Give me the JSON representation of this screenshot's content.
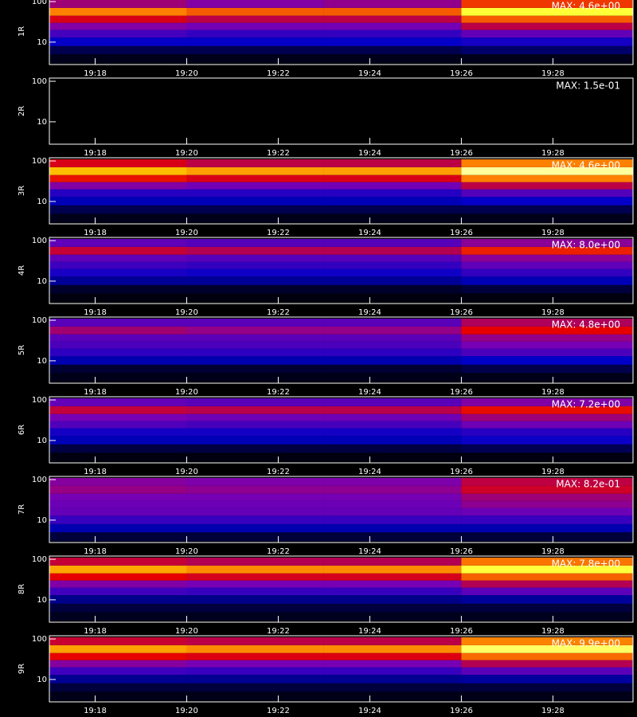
{
  "chart_data": [
    {
      "type": "heatmap",
      "ylabel": "1R",
      "annotation": "MAX: 4.6e+00",
      "zlim": [
        0,
        4.6
      ],
      "log_y": true,
      "colormap": [
        "#000000",
        "#0000c8",
        "#7800b4",
        "#e60000",
        "#ff8c00",
        "#ffff00",
        "#ffffff"
      ],
      "x": [
        1157,
        1160,
        1163,
        1166,
        1169.75
      ],
      "y": [
        3,
        5,
        8,
        13,
        20,
        30,
        45,
        70,
        110
      ],
      "z": [
        [
          0.1,
          0.1,
          0.1,
          0.1
        ],
        [
          0.3,
          0.3,
          0.3,
          0.4
        ],
        [
          0.8,
          0.8,
          0.8,
          0.9
        ],
        [
          1.2,
          1.1,
          1.1,
          1.4
        ],
        [
          1.6,
          1.5,
          1.5,
          2.0
        ],
        [
          2.2,
          2.0,
          2.0,
          2.8
        ],
        [
          3.0,
          2.8,
          2.8,
          4.0
        ],
        [
          1.8,
          1.6,
          1.7,
          2.6
        ]
      ],
      "xlim": [
        1157,
        1169.75
      ],
      "xticks": [
        {
          "value": 1158,
          "label": "19:18"
        },
        {
          "value": 1160,
          "label": "19:20"
        },
        {
          "value": 1162,
          "label": "19:22"
        },
        {
          "value": 1164,
          "label": "19:24"
        },
        {
          "value": 1166,
          "label": "19:26"
        },
        {
          "value": 1168,
          "label": "19:28"
        }
      ],
      "ylim": [
        2.8,
        120
      ],
      "yticks": [
        10,
        100
      ]
    },
    {
      "type": "heatmap",
      "ylabel": "2R",
      "annotation": "MAX: 1.5e-01",
      "zlim": [
        0,
        0.15
      ],
      "log_y": true,
      "colormap": [
        "#000000",
        "#0000c8",
        "#7800b4",
        "#e60000",
        "#ff8c00",
        "#ffff00",
        "#ffffff"
      ],
      "x": [
        1157,
        1160,
        1163,
        1166,
        1169.75
      ],
      "y": [
        3,
        5,
        8,
        13,
        20,
        30,
        45,
        70,
        110
      ],
      "z": [
        [
          0,
          0,
          0,
          0
        ],
        [
          0,
          0,
          0,
          0
        ],
        [
          0,
          0,
          0,
          0
        ],
        [
          0,
          0,
          0,
          0
        ],
        [
          0,
          0,
          0,
          0
        ],
        [
          0,
          0,
          0,
          0
        ],
        [
          0,
          0,
          0,
          0
        ],
        [
          0,
          0,
          0,
          0
        ]
      ],
      "xlim": [
        1157,
        1169.75
      ],
      "xticks": [
        {
          "value": 1158,
          "label": "19:18"
        },
        {
          "value": 1160,
          "label": "19:20"
        },
        {
          "value": 1162,
          "label": "19:22"
        },
        {
          "value": 1164,
          "label": "19:24"
        },
        {
          "value": 1166,
          "label": "19:26"
        },
        {
          "value": 1168,
          "label": "19:28"
        }
      ],
      "ylim": [
        2.8,
        120
      ],
      "yticks": [
        10,
        100
      ]
    },
    {
      "type": "heatmap",
      "ylabel": "3R",
      "annotation": "MAX: 4.6e+00",
      "zlim": [
        0,
        4.6
      ],
      "log_y": true,
      "colormap": [
        "#000000",
        "#0000c8",
        "#7800b4",
        "#e60000",
        "#ff8c00",
        "#ffff00",
        "#ffffff"
      ],
      "x": [
        1157,
        1160,
        1163,
        1166,
        1169.75
      ],
      "y": [
        3,
        5,
        8,
        13,
        20,
        30,
        45,
        70,
        110
      ],
      "z": [
        [
          0.1,
          0.1,
          0.1,
          0.1
        ],
        [
          0.3,
          0.3,
          0.3,
          0.3
        ],
        [
          0.7,
          0.7,
          0.7,
          0.8
        ],
        [
          1.0,
          1.0,
          1.0,
          1.3
        ],
        [
          1.6,
          1.5,
          1.5,
          2.0
        ],
        [
          2.4,
          2.2,
          2.2,
          3.0
        ],
        [
          3.4,
          3.2,
          3.2,
          4.3
        ],
        [
          2.2,
          2.0,
          2.0,
          3.0
        ]
      ],
      "xlim": [
        1157,
        1169.75
      ],
      "xticks": [
        {
          "value": 1158,
          "label": "19:18"
        },
        {
          "value": 1160,
          "label": "19:20"
        },
        {
          "value": 1162,
          "label": "19:22"
        },
        {
          "value": 1164,
          "label": "19:24"
        },
        {
          "value": 1166,
          "label": "19:26"
        },
        {
          "value": 1168,
          "label": "19:28"
        }
      ],
      "ylim": [
        2.8,
        120
      ],
      "yticks": [
        10,
        100
      ]
    },
    {
      "type": "heatmap",
      "ylabel": "4R",
      "annotation": "MAX: 8.0e+00",
      "zlim": [
        0,
        8.0
      ],
      "log_y": true,
      "colormap": [
        "#000000",
        "#0000c8",
        "#7800b4",
        "#e60000",
        "#ff8c00",
        "#ffff00",
        "#ffffff"
      ],
      "x": [
        1157,
        1160,
        1163,
        1166,
        1169.75
      ],
      "y": [
        3,
        5,
        8,
        13,
        20,
        30,
        45,
        70,
        110
      ],
      "z": [
        [
          0.1,
          0.1,
          0.1,
          0.1
        ],
        [
          0.3,
          0.3,
          0.3,
          0.4
        ],
        [
          1.0,
          1.0,
          1.0,
          1.2
        ],
        [
          1.6,
          1.5,
          1.5,
          1.9
        ],
        [
          2.0,
          1.9,
          1.9,
          2.4
        ],
        [
          2.4,
          2.3,
          2.3,
          2.9
        ],
        [
          3.6,
          3.4,
          3.4,
          4.3
        ],
        [
          2.4,
          2.3,
          2.3,
          2.9
        ]
      ],
      "xlim": [
        1157,
        1169.75
      ],
      "xticks": [
        {
          "value": 1158,
          "label": "19:18"
        },
        {
          "value": 1160,
          "label": "19:20"
        },
        {
          "value": 1162,
          "label": "19:22"
        },
        {
          "value": 1164,
          "label": "19:24"
        },
        {
          "value": 1166,
          "label": "19:26"
        },
        {
          "value": 1168,
          "label": "19:28"
        }
      ],
      "ylim": [
        2.8,
        120
      ],
      "yticks": [
        10,
        100
      ]
    },
    {
      "type": "heatmap",
      "ylabel": "5R",
      "annotation": "MAX: 4.8e+00",
      "zlim": [
        0,
        4.8
      ],
      "log_y": true,
      "colormap": [
        "#000000",
        "#0000c8",
        "#7800b4",
        "#e60000",
        "#ff8c00",
        "#ffff00",
        "#ffffff"
      ],
      "x": [
        1157,
        1160,
        1163,
        1166,
        1169.75
      ],
      "y": [
        3,
        5,
        8,
        13,
        20,
        30,
        45,
        70,
        110
      ],
      "z": [
        [
          0.1,
          0.1,
          0.1,
          0.1
        ],
        [
          0.2,
          0.2,
          0.2,
          0.3
        ],
        [
          0.7,
          0.7,
          0.7,
          0.8
        ],
        [
          1.1,
          1.1,
          1.1,
          1.3
        ],
        [
          1.3,
          1.3,
          1.3,
          1.6
        ],
        [
          1.4,
          1.4,
          1.4,
          1.8
        ],
        [
          1.9,
          1.8,
          1.8,
          2.4
        ],
        [
          1.4,
          1.4,
          1.4,
          2.0
        ]
      ],
      "xlim": [
        1157,
        1169.75
      ],
      "xticks": [
        {
          "value": 1158,
          "label": "19:18"
        },
        {
          "value": 1160,
          "label": "19:20"
        },
        {
          "value": 1162,
          "label": "19:22"
        },
        {
          "value": 1164,
          "label": "19:24"
        },
        {
          "value": 1166,
          "label": "19:26"
        },
        {
          "value": 1168,
          "label": "19:28"
        }
      ],
      "ylim": [
        2.8,
        120
      ],
      "yticks": [
        10,
        100
      ]
    },
    {
      "type": "heatmap",
      "ylabel": "6R",
      "annotation": "MAX: 7.2e+00",
      "zlim": [
        0,
        7.2
      ],
      "log_y": true,
      "colormap": [
        "#000000",
        "#0000c8",
        "#7800b4",
        "#e60000",
        "#ff8c00",
        "#ffff00",
        "#ffffff"
      ],
      "x": [
        1157,
        1160,
        1163,
        1166,
        1169.75
      ],
      "y": [
        3,
        5,
        8,
        13,
        20,
        30,
        45,
        70,
        110
      ],
      "z": [
        [
          0.1,
          0.1,
          0.1,
          0.1
        ],
        [
          0.4,
          0.4,
          0.4,
          0.5
        ],
        [
          1.1,
          1.1,
          1.1,
          1.3
        ],
        [
          1.4,
          1.4,
          1.4,
          1.6
        ],
        [
          2.0,
          1.9,
          1.9,
          2.3
        ],
        [
          2.4,
          2.3,
          2.3,
          2.8
        ],
        [
          3.2,
          3.1,
          3.1,
          3.7
        ],
        [
          2.2,
          2.1,
          2.1,
          2.5
        ]
      ],
      "xlim": [
        1157,
        1169.75
      ],
      "xticks": [
        {
          "value": 1158,
          "label": "19:18"
        },
        {
          "value": 1160,
          "label": "19:20"
        },
        {
          "value": 1162,
          "label": "19:22"
        },
        {
          "value": 1164,
          "label": "19:24"
        },
        {
          "value": 1166,
          "label": "19:26"
        },
        {
          "value": 1168,
          "label": "19:28"
        }
      ],
      "ylim": [
        2.8,
        120
      ],
      "yticks": [
        10,
        100
      ]
    },
    {
      "type": "heatmap",
      "ylabel": "7R",
      "annotation": "MAX: 8.2e-01",
      "zlim": [
        0,
        0.82
      ],
      "log_y": true,
      "colormap": [
        "#000000",
        "#0000c8",
        "#7800b4",
        "#e60000",
        "#ff8c00",
        "#ffff00",
        "#ffffff"
      ],
      "x": [
        1157,
        1160,
        1163,
        1166,
        1169.75
      ],
      "y": [
        3,
        5,
        8,
        13,
        20,
        30,
        45,
        70,
        110
      ],
      "z": [
        [
          0.04,
          0.04,
          0.04,
          0.04
        ],
        [
          0.12,
          0.12,
          0.12,
          0.12
        ],
        [
          0.2,
          0.2,
          0.2,
          0.2
        ],
        [
          0.25,
          0.25,
          0.25,
          0.26
        ],
        [
          0.26,
          0.26,
          0.26,
          0.3
        ],
        [
          0.27,
          0.27,
          0.27,
          0.32
        ],
        [
          0.31,
          0.3,
          0.3,
          0.38
        ],
        [
          0.29,
          0.28,
          0.28,
          0.36
        ]
      ],
      "xlim": [
        1157,
        1169.75
      ],
      "xticks": [
        {
          "value": 1158,
          "label": "19:18"
        },
        {
          "value": 1160,
          "label": "19:20"
        },
        {
          "value": 1162,
          "label": "19:22"
        },
        {
          "value": 1164,
          "label": "19:24"
        },
        {
          "value": 1166,
          "label": "19:26"
        },
        {
          "value": 1168,
          "label": "19:28"
        }
      ],
      "ylim": [
        2.8,
        120
      ],
      "yticks": [
        10,
        100
      ]
    },
    {
      "type": "heatmap",
      "ylabel": "8R",
      "annotation": "MAX: 7.8e+00",
      "zlim": [
        0,
        7.8
      ],
      "log_y": true,
      "colormap": [
        "#000000",
        "#0000c8",
        "#7800b4",
        "#e60000",
        "#ff8c00",
        "#ffff00",
        "#ffffff"
      ],
      "x": [
        1157,
        1160,
        1163,
        1166,
        1169.75
      ],
      "y": [
        3,
        5,
        8,
        13,
        20,
        30,
        45,
        70,
        110
      ],
      "z": [
        [
          0.2,
          0.2,
          0.2,
          0.2
        ],
        [
          0.4,
          0.4,
          0.4,
          0.4
        ],
        [
          0.9,
          0.9,
          0.9,
          1.0
        ],
        [
          2.0,
          1.9,
          1.9,
          2.3
        ],
        [
          2.7,
          2.6,
          2.6,
          3.3
        ],
        [
          3.9,
          3.7,
          3.7,
          4.8
        ],
        [
          5.5,
          5.2,
          5.2,
          6.8
        ],
        [
          3.5,
          3.3,
          3.3,
          5.0
        ]
      ],
      "xlim": [
        1157,
        1169.75
      ],
      "xticks": [
        {
          "value": 1158,
          "label": "19:18"
        },
        {
          "value": 1160,
          "label": "19:20"
        },
        {
          "value": 1162,
          "label": "19:22"
        },
        {
          "value": 1164,
          "label": "19:24"
        },
        {
          "value": 1166,
          "label": "19:26"
        },
        {
          "value": 1168,
          "label": "19:28"
        }
      ],
      "ylim": [
        2.8,
        120
      ],
      "yticks": [
        10,
        100
      ]
    },
    {
      "type": "heatmap",
      "ylabel": "9R",
      "annotation": "MAX: 9.9e+00",
      "zlim": [
        0,
        9.9
      ],
      "log_y": true,
      "colormap": [
        "#000000",
        "#0000c8",
        "#7800b4",
        "#e60000",
        "#ff8c00",
        "#ffff00",
        "#ffffff"
      ],
      "x": [
        1157,
        1160,
        1163,
        1166,
        1169.75
      ],
      "y": [
        3,
        5,
        8,
        13,
        20,
        30,
        45,
        70,
        110
      ],
      "z": [
        [
          0.2,
          0.2,
          0.2,
          0.2
        ],
        [
          0.5,
          0.5,
          0.5,
          0.5
        ],
        [
          1.2,
          1.2,
          1.2,
          1.3
        ],
        [
          2.5,
          2.4,
          2.4,
          2.9
        ],
        [
          3.5,
          3.3,
          3.3,
          4.2
        ],
        [
          5.0,
          4.8,
          4.8,
          6.2
        ],
        [
          6.9,
          6.6,
          6.6,
          8.9
        ],
        [
          4.5,
          4.3,
          4.3,
          6.5
        ]
      ],
      "xlim": [
        1157,
        1169.75
      ],
      "xticks": [
        {
          "value": 1158,
          "label": "19:18"
        },
        {
          "value": 1160,
          "label": "19:20"
        },
        {
          "value": 1162,
          "label": "19:22"
        },
        {
          "value": 1164,
          "label": "19:24"
        },
        {
          "value": 1166,
          "label": "19:26"
        },
        {
          "value": 1168,
          "label": "19:28"
        }
      ],
      "ylim": [
        2.8,
        120
      ],
      "yticks": [
        10,
        100
      ]
    }
  ]
}
